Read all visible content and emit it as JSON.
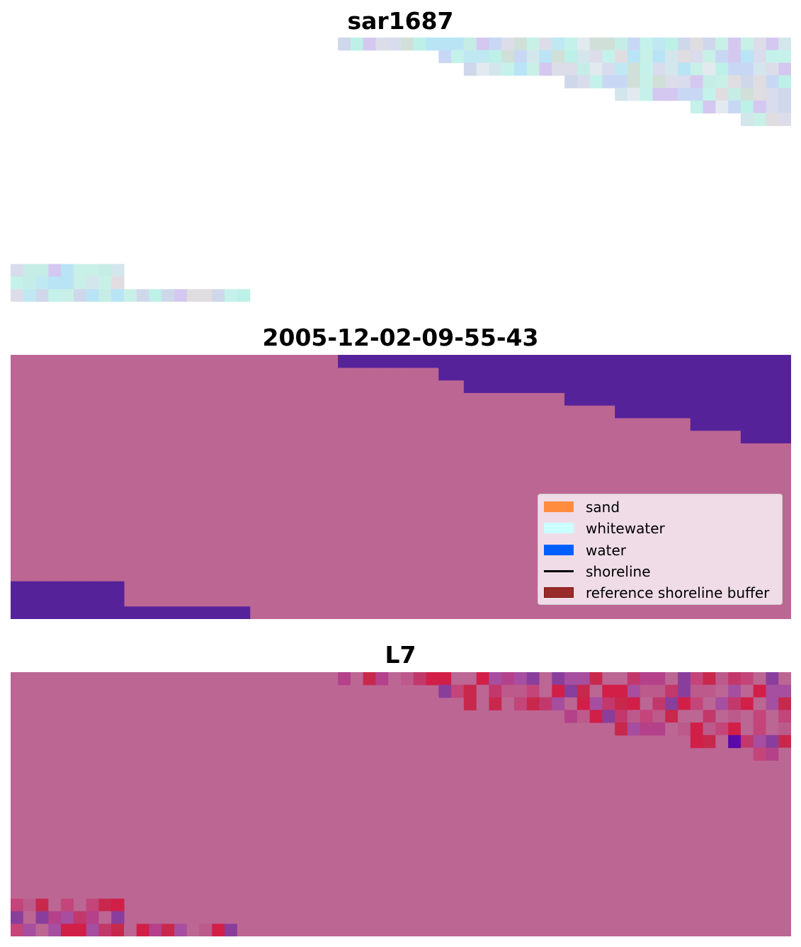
{
  "panels": [
    {
      "title": "sar1687"
    },
    {
      "title": "2005-12-02-09-55-43"
    },
    {
      "title": "L7"
    }
  ],
  "legend": {
    "items": [
      {
        "label": "sand",
        "color": "#ff8c3f",
        "kind": "patch"
      },
      {
        "label": "whitewater",
        "color": "#ccffff",
        "kind": "patch"
      },
      {
        "label": "water",
        "color": "#0060ff",
        "kind": "patch"
      },
      {
        "label": "shoreline",
        "color": "#000000",
        "kind": "line"
      },
      {
        "label": "reference shoreline buffer",
        "color": "#992b2b",
        "kind": "patch"
      }
    ]
  },
  "colors": {
    "mask_land": "#bc6694",
    "mask_water": "#56229a",
    "overlay_red": "#c7284c",
    "overlay_purple": "#8a3e9c"
  }
}
